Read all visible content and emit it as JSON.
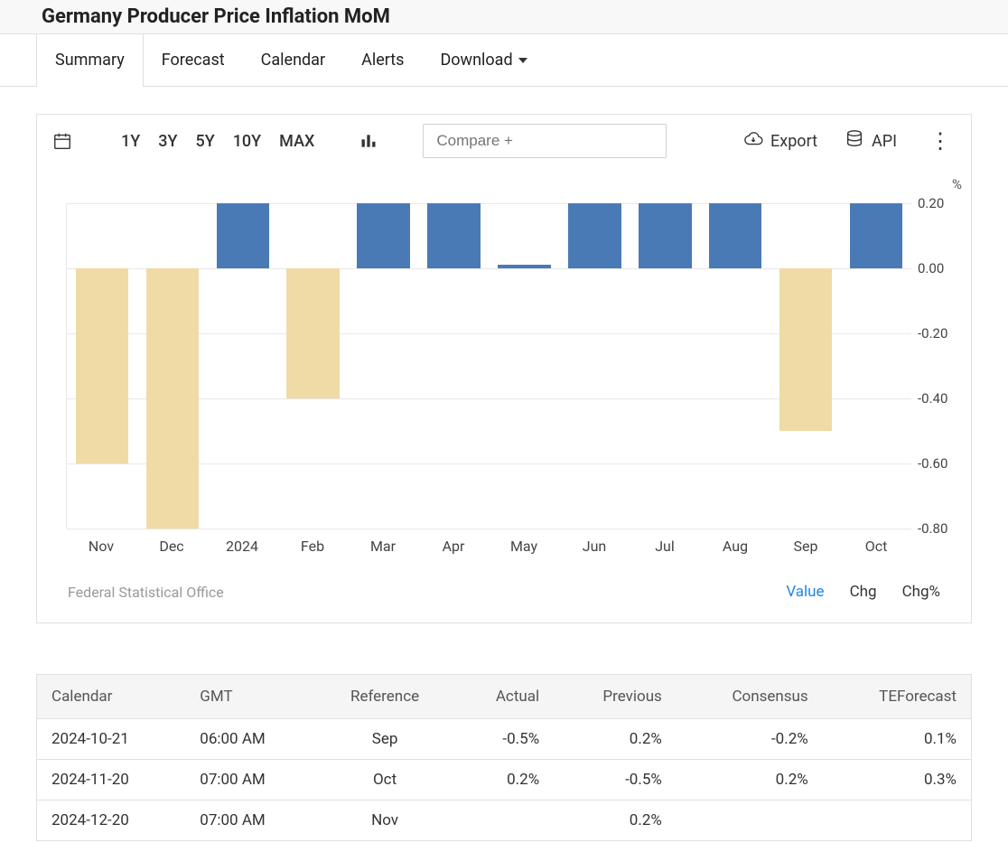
{
  "header": {
    "title": "Germany Producer Price Inflation MoM"
  },
  "tabs": {
    "items": [
      "Summary",
      "Forecast",
      "Calendar",
      "Alerts",
      "Download"
    ],
    "active_index": 0,
    "dropdown_indices": [
      4
    ]
  },
  "toolbar": {
    "ranges": [
      "1Y",
      "3Y",
      "5Y",
      "10Y",
      "MAX"
    ],
    "compare_placeholder": "Compare +",
    "export_label": "Export",
    "api_label": "API"
  },
  "chart": {
    "type": "bar",
    "unit": "%",
    "categories": [
      "Nov",
      "Dec",
      "2024",
      "Feb",
      "Mar",
      "Apr",
      "May",
      "Jun",
      "Jul",
      "Aug",
      "Sep",
      "Oct"
    ],
    "values": [
      -0.6,
      -0.8,
      0.2,
      -0.4,
      0.2,
      0.2,
      0.01,
      0.2,
      0.2,
      0.2,
      -0.5,
      0.2
    ],
    "positive_color": "#4a7ab5",
    "negative_color": "#f0dba6",
    "ymin": -0.8,
    "ymax": 0.2,
    "ytick_step": 0.2,
    "grid_color": "#e8e8e8",
    "background_color": "#ffffff",
    "label_color": "#444444"
  },
  "chart_footer": {
    "source": "Federal Statistical Office",
    "links": [
      "Value",
      "Chg",
      "Chg%"
    ],
    "active_index": 0,
    "active_color": "#1e88e5"
  },
  "calendar": {
    "columns": [
      "Calendar",
      "GMT",
      "Reference",
      "Actual",
      "Previous",
      "Consensus",
      "TEForecast"
    ],
    "align": [
      "left",
      "左left",
      "center",
      "right",
      "right",
      "right",
      "right"
    ],
    "rows": [
      [
        "2024-10-21",
        "06:00 AM",
        "Sep",
        "-0.5%",
        "0.2%",
        "-0.2%",
        "0.1%"
      ],
      [
        "2024-11-20",
        "07:00 AM",
        "Oct",
        "0.2%",
        "-0.5%",
        "0.2%",
        "0.3%"
      ],
      [
        "2024-12-20",
        "07:00 AM",
        "Nov",
        "",
        "0.2%",
        "",
        ""
      ]
    ]
  }
}
